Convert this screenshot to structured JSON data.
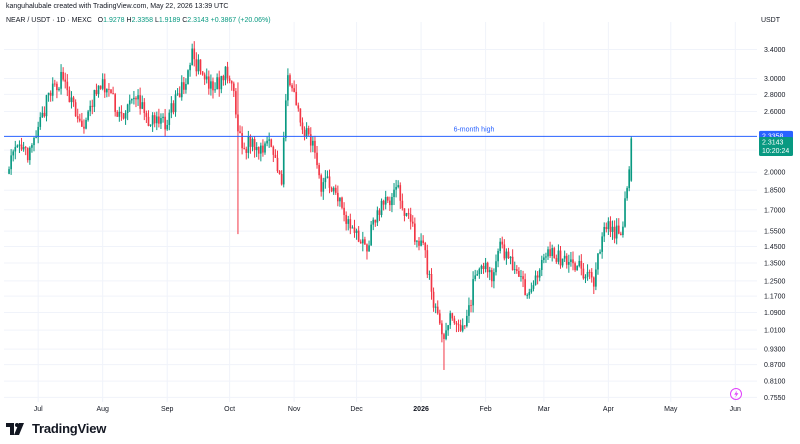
{
  "header": {
    "created_by": "kanguhalubale created with TradingView.com, May 22, 2026 13:39 UTC",
    "symbol": "NEAR / USDT · 1D · MEXC",
    "o_label": "O",
    "o_value": "1.9278",
    "h_label": "H",
    "h_value": "2.3358",
    "l_label": "L",
    "l_value": "1.9189",
    "c_label": "C",
    "c_value": "2.3143",
    "change": "+0.3867 (+20.06%)",
    "currency": "USDT"
  },
  "footer": {
    "brand": "TradingView"
  },
  "colors": {
    "up": "#089981",
    "down": "#f23645",
    "line": "#2962ff",
    "text": "#131722"
  },
  "chart_data": {
    "type": "candlestick",
    "scale": "log",
    "x_tick_labels": [
      "Jul",
      "Aug",
      "Sep",
      "Oct",
      "Nov",
      "Dec",
      "2026",
      "Feb",
      "Mar",
      "Apr",
      "May",
      "Jun"
    ],
    "y_tick_labels": [
      "3.4000",
      "3.0000",
      "2.8000",
      "2.6000",
      "2.2000",
      "2.0000",
      "1.8500",
      "1.7000",
      "1.5500",
      "1.4500",
      "1.3500",
      "1.2500",
      "1.1700",
      "1.0900",
      "1.0100",
      "0.9300",
      "0.8700",
      "0.8100",
      "0.7550"
    ],
    "y_ticks": [
      3.4,
      3.0,
      2.8,
      2.6,
      2.2,
      2.0,
      1.85,
      1.7,
      1.55,
      1.45,
      1.35,
      1.25,
      1.17,
      1.09,
      1.01,
      0.93,
      0.87,
      0.81,
      0.755
    ],
    "ylim": [
      0.74,
      3.7
    ],
    "x_range_days": [
      0,
      357
    ],
    "month_start_days": [
      14,
      45,
      76,
      106,
      137,
      167,
      198,
      229,
      257,
      288,
      318,
      349
    ],
    "horizontal_line": {
      "value": 2.3358,
      "label": "6-month high"
    },
    "price_labels": {
      "high": "2.3358",
      "close": "2.3143",
      "countdown": "10:20:24"
    },
    "anchors": [
      [
        0,
        2.1
      ],
      [
        5,
        2.2
      ],
      [
        10,
        2.15
      ],
      [
        14,
        2.4
      ],
      [
        18,
        2.7
      ],
      [
        22,
        2.9
      ],
      [
        26,
        3.05
      ],
      [
        30,
        2.7
      ],
      [
        33,
        2.5
      ],
      [
        37,
        2.45
      ],
      [
        41,
        2.8
      ],
      [
        45,
        2.9
      ],
      [
        48,
        2.85
      ],
      [
        51,
        2.65
      ],
      [
        54,
        2.55
      ],
      [
        57,
        2.65
      ],
      [
        62,
        2.75
      ],
      [
        67,
        2.5
      ],
      [
        72,
        2.45
      ],
      [
        76,
        2.5
      ],
      [
        80,
        2.75
      ],
      [
        84,
        2.9
      ],
      [
        88,
        3.3
      ],
      [
        91,
        3.15
      ],
      [
        94,
        2.95
      ],
      [
        98,
        2.85
      ],
      [
        101,
        2.95
      ],
      [
        104,
        3.05
      ],
      [
        107,
        2.95
      ],
      [
        110,
        2.4
      ],
      [
        113,
        2.2
      ],
      [
        116,
        2.3
      ],
      [
        119,
        2.2
      ],
      [
        122,
        2.25
      ],
      [
        125,
        2.35
      ],
      [
        128,
        2.15
      ],
      [
        131,
        1.9
      ],
      [
        134,
        3.15
      ],
      [
        137,
        2.75
      ],
      [
        140,
        2.45
      ],
      [
        143,
        2.35
      ],
      [
        147,
        2.2
      ],
      [
        150,
        1.9
      ],
      [
        153,
        1.95
      ],
      [
        156,
        1.85
      ],
      [
        159,
        1.8
      ],
      [
        162,
        1.65
      ],
      [
        165,
        1.55
      ],
      [
        168,
        1.5
      ],
      [
        172,
        1.45
      ],
      [
        175,
        1.6
      ],
      [
        178,
        1.7
      ],
      [
        181,
        1.75
      ],
      [
        184,
        1.8
      ],
      [
        187,
        1.85
      ],
      [
        190,
        1.7
      ],
      [
        193,
        1.6
      ],
      [
        196,
        1.5
      ],
      [
        199,
        1.45
      ],
      [
        203,
        1.2
      ],
      [
        206,
        1.05
      ],
      [
        209,
        0.98
      ],
      [
        212,
        1.07
      ],
      [
        215,
        1.05
      ],
      [
        218,
        1.02
      ],
      [
        221,
        1.1
      ],
      [
        224,
        1.3
      ],
      [
        227,
        1.3
      ],
      [
        230,
        1.32
      ],
      [
        233,
        1.27
      ],
      [
        236,
        1.45
      ],
      [
        239,
        1.4
      ],
      [
        242,
        1.35
      ],
      [
        245,
        1.25
      ],
      [
        248,
        1.2
      ],
      [
        251,
        1.25
      ],
      [
        254,
        1.3
      ],
      [
        257,
        1.35
      ],
      [
        260,
        1.42
      ],
      [
        263,
        1.4
      ],
      [
        266,
        1.35
      ],
      [
        269,
        1.4
      ],
      [
        272,
        1.35
      ],
      [
        275,
        1.3
      ],
      [
        278,
        1.3
      ],
      [
        281,
        1.25
      ],
      [
        284,
        1.45
      ],
      [
        287,
        1.6
      ],
      [
        290,
        1.55
      ],
      [
        293,
        1.55
      ],
      [
        295,
        1.6
      ],
      [
        297,
        1.9
      ],
      [
        299,
        2.3
      ]
    ]
  }
}
